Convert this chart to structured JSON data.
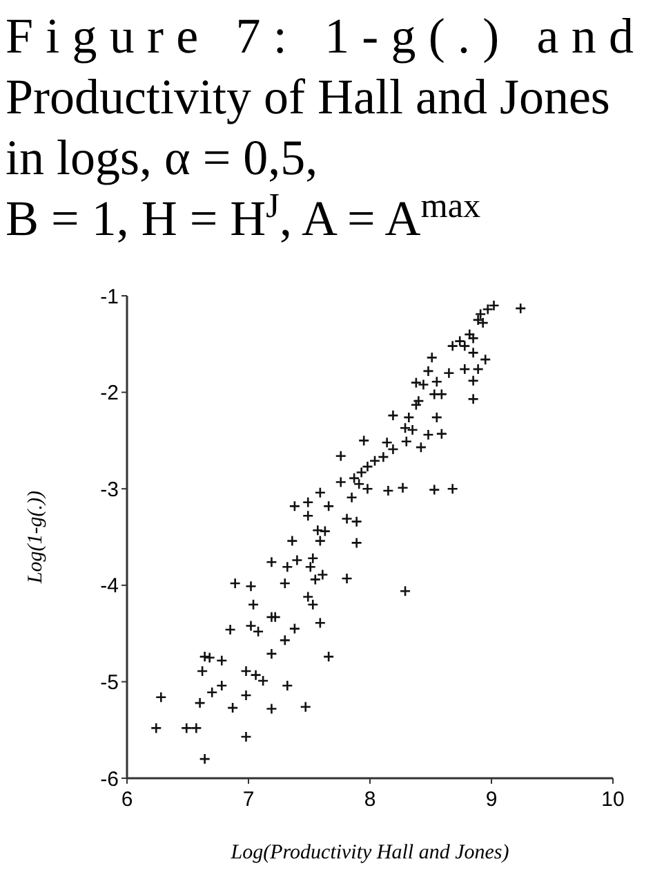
{
  "chart_data": {
    "type": "scatter",
    "title": "Figure 7: 1-g(.) and Productivity of Hall and Jones in logs, α = 0,5,",
    "subtitle": "B = 1, H = H$^{J}$, A = A$^{max}$",
    "xlabel": "Log(Productivity Hall and Jones)",
    "ylabel": "Log(1-g(.))",
    "marker": "cross",
    "grid": false,
    "xlim": [
      6,
      10
    ],
    "xticks": [
      6,
      7,
      8,
      9,
      10
    ],
    "ylim": [
      -6,
      -1
    ],
    "yticks": [
      -6,
      -5,
      -4,
      -3,
      -2,
      -1
    ],
    "series": [
      {
        "color": "#111111",
        "x": [
          9.24,
          9.02,
          8.97,
          8.91,
          8.89,
          8.93,
          8.74,
          8.82,
          8.78,
          8.68,
          8.85,
          8.85,
          8.95,
          8.89,
          8.85,
          8.78,
          8.65,
          8.85,
          8.51,
          8.48,
          8.38,
          8.44,
          8.55,
          8.59,
          8.53,
          8.4,
          8.38,
          8.19,
          8.32,
          8.55,
          8.29,
          8.35,
          8.48,
          8.59,
          8.3,
          8.42,
          7.95,
          8.14,
          8.19,
          8.11,
          8.04,
          7.98,
          7.93,
          7.76,
          7.87,
          7.76,
          7.91,
          7.98,
          8.15,
          8.27,
          8.53,
          8.68,
          7.38,
          7.49,
          7.59,
          7.66,
          7.49,
          7.85,
          7.81,
          7.89,
          7.57,
          7.63,
          7.36,
          7.59,
          7.89,
          7.19,
          7.32,
          7.4,
          7.53,
          7.51,
          7.3,
          7.55,
          7.61,
          7.81,
          6.89,
          7.02,
          7.04,
          8.29,
          7.49,
          7.53,
          7.19,
          7.22,
          6.85,
          7.02,
          7.08,
          7.38,
          7.59,
          7.3,
          7.19,
          6.64,
          6.68,
          6.78,
          7.66,
          6.62,
          6.98,
          7.06,
          7.12,
          6.78,
          7.32,
          6.7,
          6.28,
          6.98,
          6.6,
          6.87,
          7.19,
          7.47,
          6.24,
          6.49,
          6.57,
          6.98,
          6.64
        ],
        "values": [
          -1.13,
          -1.1,
          -1.14,
          -1.19,
          -1.25,
          -1.28,
          -1.47,
          -1.4,
          -1.52,
          -1.52,
          -1.44,
          -1.59,
          -1.66,
          -1.76,
          -1.88,
          -1.76,
          -1.8,
          -2.07,
          -1.64,
          -1.78,
          -1.9,
          -1.92,
          -1.89,
          -2.02,
          -2.02,
          -2.09,
          -2.13,
          -2.24,
          -2.26,
          -2.26,
          -2.37,
          -2.39,
          -2.44,
          -2.43,
          -2.51,
          -2.57,
          -2.5,
          -2.52,
          -2.59,
          -2.67,
          -2.71,
          -2.77,
          -2.83,
          -2.66,
          -2.89,
          -2.93,
          -2.95,
          -3.0,
          -3.02,
          -2.99,
          -3.01,
          -3.0,
          -3.18,
          -3.14,
          -3.04,
          -3.18,
          -3.28,
          -3.09,
          -3.31,
          -3.34,
          -3.43,
          -3.44,
          -3.54,
          -3.54,
          -3.56,
          -3.76,
          -3.81,
          -3.74,
          -3.72,
          -3.81,
          -3.98,
          -3.94,
          -3.89,
          -3.93,
          -3.98,
          -4.01,
          -4.2,
          -4.06,
          -4.12,
          -4.2,
          -4.33,
          -4.33,
          -4.46,
          -4.42,
          -4.48,
          -4.45,
          -4.39,
          -4.57,
          -4.71,
          -4.74,
          -4.75,
          -4.78,
          -4.74,
          -4.89,
          -4.89,
          -4.93,
          -4.99,
          -5.04,
          -5.04,
          -5.11,
          -5.16,
          -5.14,
          -5.22,
          -5.27,
          -5.28,
          -5.26,
          -5.48,
          -5.48,
          -5.48,
          -5.57,
          -5.8
        ]
      }
    ]
  }
}
